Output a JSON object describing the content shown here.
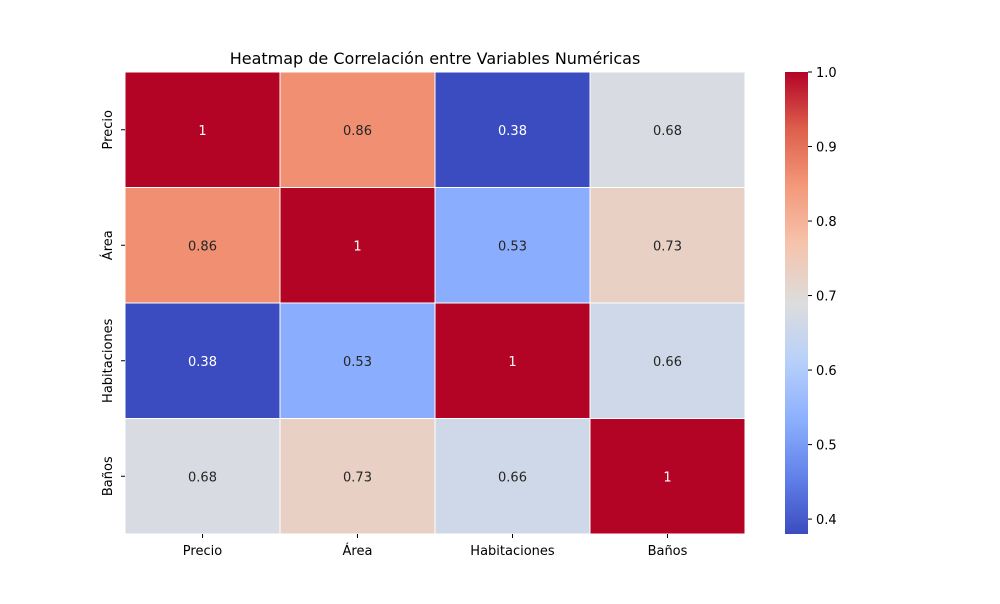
{
  "chart_data": {
    "type": "heatmap",
    "title": "Heatmap de Correlación entre Variables Numéricas",
    "x_labels": [
      "Precio",
      "Área",
      "Habitaciones",
      "Baños"
    ],
    "y_labels": [
      "Precio",
      "Área",
      "Habitaciones",
      "Baños"
    ],
    "values": [
      [
        1,
        0.86,
        0.38,
        0.68
      ],
      [
        0.86,
        1,
        0.53,
        0.73
      ],
      [
        0.38,
        0.53,
        1,
        0.66
      ],
      [
        0.68,
        0.73,
        0.66,
        1
      ]
    ],
    "annotations": [
      [
        "1",
        "0.86",
        "0.38",
        "0.68"
      ],
      [
        "0.86",
        "1",
        "0.53",
        "0.73"
      ],
      [
        "0.38",
        "0.53",
        "1",
        "0.66"
      ],
      [
        "0.68",
        "0.73",
        "0.66",
        "1"
      ]
    ],
    "colormap": "coolwarm",
    "colorbar": {
      "vmin": 0.38,
      "vmax": 1.0,
      "ticks": [
        "0.4",
        "0.5",
        "0.6",
        "0.7",
        "0.8",
        "0.9",
        "1.0"
      ]
    },
    "grid_line_color": "#ffffff"
  }
}
